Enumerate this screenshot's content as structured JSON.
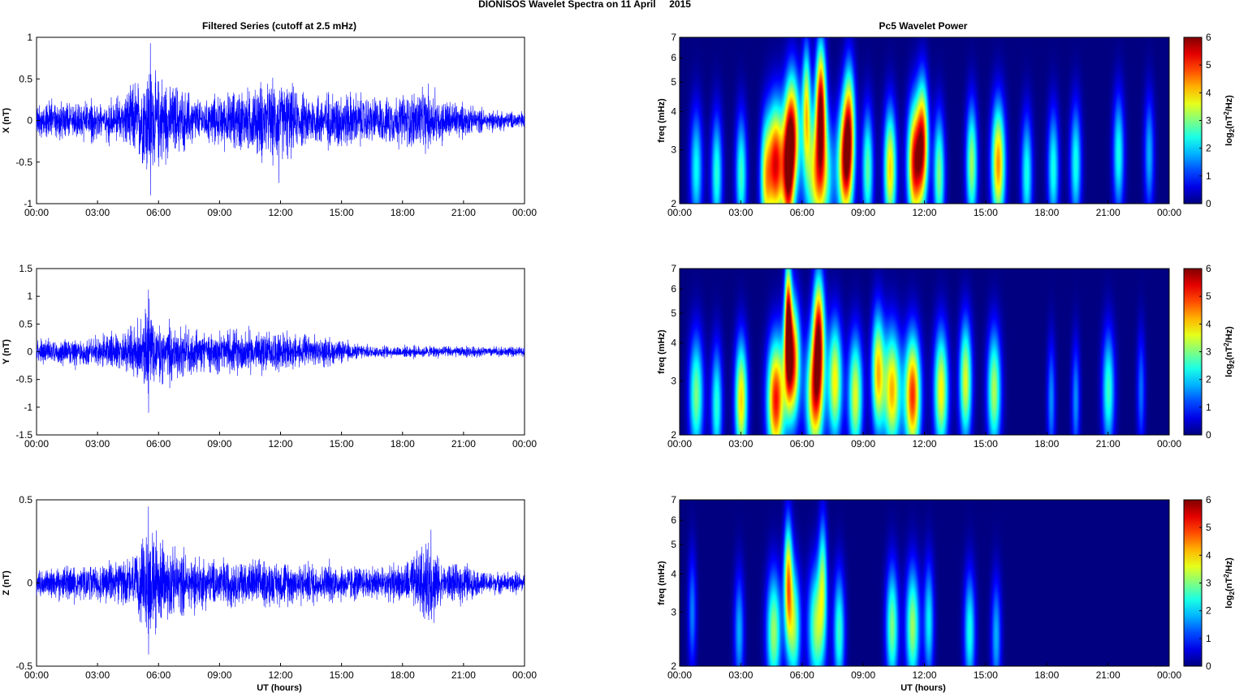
{
  "figure": {
    "title": "DIONISOS Wavelet Spectra on 11 April     2015",
    "left_title": "Filtered Series (cutoff at 2.5 mHz)",
    "right_title": "Pc5 Wavelet Power",
    "xlabel": "UT (hours)"
  },
  "colors": {
    "trace": "#0000ff",
    "axis": "#000000",
    "frame": "#000000"
  },
  "chart_data": [
    {
      "type": "line",
      "title": "Filtered Series (cutoff at 2.5 mHz)",
      "ylabel": "X (nT)",
      "xlabel": "",
      "xlim": [
        0,
        24
      ],
      "ylim": [
        -1,
        1
      ],
      "yticks": [
        "1",
        "0.5",
        "0",
        "-0.5",
        "-1"
      ],
      "ytick_values": [
        1,
        0.5,
        0,
        -0.5,
        -1
      ],
      "xticks": [
        "00:00",
        "03:00",
        "06:00",
        "09:00",
        "12:00",
        "15:00",
        "18:00",
        "21:00",
        "00:00"
      ],
      "envelope_hours": [
        0,
        2,
        4,
        5,
        5.5,
        6,
        7,
        8,
        10,
        11,
        12,
        13,
        15,
        17,
        19,
        20,
        22,
        24
      ],
      "envelope_nT": [
        0.25,
        0.25,
        0.3,
        0.55,
        0.85,
        0.6,
        0.45,
        0.3,
        0.4,
        0.5,
        0.55,
        0.35,
        0.4,
        0.3,
        0.45,
        0.3,
        0.15,
        0.12
      ],
      "peaks": [
        {
          "t": 5.6,
          "v": 0.93
        },
        {
          "t": 5.6,
          "v": -0.9
        },
        {
          "t": 11.9,
          "v": -0.75
        },
        {
          "t": 19.6,
          "v": 0.4
        }
      ]
    },
    {
      "type": "line",
      "ylabel": "Y (nT)",
      "xlabel": "",
      "xlim": [
        0,
        24
      ],
      "ylim": [
        -1.5,
        1.5
      ],
      "yticks": [
        "1.5",
        "1",
        "0.5",
        "0",
        "-0.5",
        "-1",
        "-1.5"
      ],
      "ytick_values": [
        1.5,
        1,
        0.5,
        0,
        -0.5,
        -1,
        -1.5
      ],
      "xticks": [
        "00:00",
        "03:00",
        "06:00",
        "09:00",
        "12:00",
        "15:00",
        "18:00",
        "21:00",
        "00:00"
      ],
      "envelope_hours": [
        0,
        2,
        4,
        5,
        5.5,
        6,
        7,
        8,
        10,
        12,
        14,
        16,
        18,
        20,
        24
      ],
      "envelope_nT": [
        0.25,
        0.3,
        0.35,
        0.6,
        1.0,
        0.7,
        0.55,
        0.4,
        0.45,
        0.4,
        0.3,
        0.15,
        0.12,
        0.12,
        0.1
      ],
      "peaks": [
        {
          "t": 5.5,
          "v": 1.12
        },
        {
          "t": 5.5,
          "v": -1.1
        }
      ]
    },
    {
      "type": "line",
      "ylabel": "Z (nT)",
      "xlabel": "UT (hours)",
      "xlim": [
        0,
        24
      ],
      "ylim": [
        -0.5,
        0.5
      ],
      "yticks": [
        "0.5",
        "0",
        "-0.5"
      ],
      "ytick_values": [
        0.5,
        0,
        -0.5
      ],
      "xticks": [
        "00:00",
        "03:00",
        "06:00",
        "09:00",
        "12:00",
        "15:00",
        "18:00",
        "21:00",
        "00:00"
      ],
      "envelope_hours": [
        0,
        2,
        4,
        5,
        5.5,
        6,
        7,
        8,
        10,
        12,
        14,
        16,
        18,
        19.4,
        20,
        21,
        22,
        24
      ],
      "envelope_nT": [
        0.1,
        0.12,
        0.15,
        0.22,
        0.42,
        0.3,
        0.22,
        0.18,
        0.16,
        0.15,
        0.14,
        0.12,
        0.12,
        0.3,
        0.12,
        0.14,
        0.08,
        0.07
      ],
      "peaks": [
        {
          "t": 5.5,
          "v": 0.46
        },
        {
          "t": 5.5,
          "v": -0.43
        },
        {
          "t": 19.4,
          "v": 0.32
        }
      ]
    },
    {
      "type": "heatmap",
      "title": "Pc5 Wavelet Power",
      "ylabel": "freq (mHz)",
      "xlabel": "",
      "xlim": [
        0,
        24
      ],
      "ylim": [
        2,
        7
      ],
      "yscale": "log",
      "yticks": [
        "7",
        "6",
        "5",
        "4",
        "3",
        "2"
      ],
      "ytick_values": [
        7,
        6,
        5,
        4,
        3,
        2
      ],
      "xticks": [
        "00:00",
        "03:00",
        "06:00",
        "09:00",
        "12:00",
        "15:00",
        "18:00",
        "21:00",
        "00:00"
      ],
      "colorbar_label": "log2(nT2/Hz)",
      "colorbar_ticks": [
        "6",
        "5",
        "4",
        "3",
        "2",
        "1",
        "0"
      ],
      "clim": [
        0,
        6
      ],
      "blobs": [
        {
          "t": 0.8,
          "f": 2.6,
          "amp": 2.3,
          "w": 0.22
        },
        {
          "t": 1.8,
          "f": 2.5,
          "amp": 2.5,
          "w": 0.2
        },
        {
          "t": 3.0,
          "f": 2.5,
          "amp": 2.6,
          "w": 0.2
        },
        {
          "t": 4.2,
          "f": 2.4,
          "amp": 3.2,
          "w": 0.2
        },
        {
          "t": 4.7,
          "f": 2.7,
          "amp": 5.3,
          "w": 0.28
        },
        {
          "t": 5.5,
          "f": 3.4,
          "amp": 5.0,
          "w": 0.26
        },
        {
          "t": 5.3,
          "f": 2.4,
          "amp": 4.2,
          "w": 0.2
        },
        {
          "t": 6.2,
          "f": 4.2,
          "amp": 3.5,
          "w": 0.15
        },
        {
          "t": 6.9,
          "f": 4.3,
          "amp": 5.2,
          "w": 0.18
        },
        {
          "t": 6.8,
          "f": 2.5,
          "amp": 4.3,
          "w": 0.45
        },
        {
          "t": 8.1,
          "f": 2.7,
          "amp": 5.0,
          "w": 0.26
        },
        {
          "t": 8.3,
          "f": 3.7,
          "amp": 3.5,
          "w": 0.2
        },
        {
          "t": 9.2,
          "f": 2.6,
          "amp": 2.8,
          "w": 0.2
        },
        {
          "t": 10.3,
          "f": 2.6,
          "amp": 4.0,
          "w": 0.22
        },
        {
          "t": 11.5,
          "f": 2.7,
          "amp": 5.2,
          "w": 0.25
        },
        {
          "t": 11.9,
          "f": 3.2,
          "amp": 4.6,
          "w": 0.2
        },
        {
          "t": 12.7,
          "f": 2.5,
          "amp": 3.0,
          "w": 0.2
        },
        {
          "t": 14.3,
          "f": 2.7,
          "amp": 3.2,
          "w": 0.2
        },
        {
          "t": 15.6,
          "f": 2.7,
          "amp": 4.4,
          "w": 0.24
        },
        {
          "t": 17.0,
          "f": 2.5,
          "amp": 2.4,
          "w": 0.2
        },
        {
          "t": 18.3,
          "f": 2.6,
          "amp": 2.4,
          "w": 0.2
        },
        {
          "t": 19.4,
          "f": 2.7,
          "amp": 2.4,
          "w": 0.2
        },
        {
          "t": 21.5,
          "f": 2.9,
          "amp": 2.4,
          "w": 0.2
        },
        {
          "t": 23.0,
          "f": 2.9,
          "amp": 1.8,
          "w": 0.18
        }
      ]
    },
    {
      "type": "heatmap",
      "ylabel": "freq (mHz)",
      "xlabel": "",
      "xlim": [
        0,
        24
      ],
      "ylim": [
        2,
        7
      ],
      "yscale": "log",
      "yticks": [
        "7",
        "6",
        "5",
        "4",
        "3",
        "2"
      ],
      "ytick_values": [
        7,
        6,
        5,
        4,
        3,
        2
      ],
      "xticks": [
        "00:00",
        "03:00",
        "06:00",
        "09:00",
        "12:00",
        "15:00",
        "18:00",
        "21:00",
        "00:00"
      ],
      "colorbar_label": "log2(nT2/Hz)",
      "colorbar_ticks": [
        "6",
        "5",
        "4",
        "3",
        "2",
        "1",
        "0"
      ],
      "clim": [
        0,
        6
      ],
      "blobs": [
        {
          "t": 0.8,
          "f": 2.7,
          "amp": 3.0,
          "w": 0.25
        },
        {
          "t": 1.8,
          "f": 2.5,
          "amp": 2.5,
          "w": 0.2
        },
        {
          "t": 3.0,
          "f": 2.6,
          "amp": 4.0,
          "w": 0.22
        },
        {
          "t": 4.7,
          "f": 2.6,
          "amp": 5.2,
          "w": 0.3
        },
        {
          "t": 5.5,
          "f": 3.5,
          "amp": 5.4,
          "w": 0.26
        },
        {
          "t": 5.3,
          "f": 4.8,
          "amp": 4.5,
          "w": 0.12
        },
        {
          "t": 6.8,
          "f": 4.3,
          "amp": 5.0,
          "w": 0.2
        },
        {
          "t": 6.6,
          "f": 2.7,
          "amp": 4.6,
          "w": 0.3
        },
        {
          "t": 7.6,
          "f": 3.0,
          "amp": 3.8,
          "w": 0.25
        },
        {
          "t": 8.6,
          "f": 2.7,
          "amp": 3.6,
          "w": 0.25
        },
        {
          "t": 9.7,
          "f": 3.2,
          "amp": 4.0,
          "w": 0.22
        },
        {
          "t": 10.4,
          "f": 2.8,
          "amp": 4.2,
          "w": 0.3
        },
        {
          "t": 11.4,
          "f": 2.7,
          "amp": 5.0,
          "w": 0.28
        },
        {
          "t": 12.8,
          "f": 2.8,
          "amp": 3.8,
          "w": 0.25
        },
        {
          "t": 14.0,
          "f": 3.0,
          "amp": 3.6,
          "w": 0.22
        },
        {
          "t": 15.4,
          "f": 2.8,
          "amp": 3.3,
          "w": 0.24
        },
        {
          "t": 18.2,
          "f": 2.6,
          "amp": 1.6,
          "w": 0.15
        },
        {
          "t": 19.4,
          "f": 2.6,
          "amp": 1.6,
          "w": 0.15
        },
        {
          "t": 21.0,
          "f": 2.8,
          "amp": 2.6,
          "w": 0.22
        },
        {
          "t": 22.6,
          "f": 2.8,
          "amp": 1.4,
          "w": 0.15
        }
      ]
    },
    {
      "type": "heatmap",
      "ylabel": "freq (mHz)",
      "xlabel": "UT (hours)",
      "xlim": [
        0,
        24
      ],
      "ylim": [
        2,
        7
      ],
      "yscale": "log",
      "yticks": [
        "7",
        "6",
        "5",
        "4",
        "3",
        "2"
      ],
      "ytick_values": [
        7,
        6,
        5,
        4,
        3,
        2
      ],
      "xticks": [
        "00:00",
        "03:00",
        "06:00",
        "09:00",
        "12:00",
        "15:00",
        "18:00",
        "21:00",
        "00:00"
      ],
      "colorbar_label": "log2(nT2/Hz)",
      "colorbar_ticks": [
        "6",
        "5",
        "4",
        "3",
        "2",
        "1",
        "0"
      ],
      "clim": [
        0,
        6
      ],
      "blobs": [
        {
          "t": 0.6,
          "f": 3.0,
          "amp": 1.5,
          "w": 0.15
        },
        {
          "t": 2.9,
          "f": 2.6,
          "amp": 1.8,
          "w": 0.18
        },
        {
          "t": 4.6,
          "f": 2.6,
          "amp": 3.2,
          "w": 0.26
        },
        {
          "t": 5.3,
          "f": 3.8,
          "amp": 4.0,
          "w": 0.15
        },
        {
          "t": 5.6,
          "f": 2.7,
          "amp": 3.0,
          "w": 0.22
        },
        {
          "t": 6.7,
          "f": 2.7,
          "amp": 3.2,
          "w": 0.3
        },
        {
          "t": 7.0,
          "f": 4.0,
          "amp": 2.4,
          "w": 0.15
        },
        {
          "t": 7.8,
          "f": 2.6,
          "amp": 2.6,
          "w": 0.2
        },
        {
          "t": 10.4,
          "f": 2.7,
          "amp": 3.0,
          "w": 0.22
        },
        {
          "t": 11.4,
          "f": 2.7,
          "amp": 3.2,
          "w": 0.24
        },
        {
          "t": 12.2,
          "f": 2.8,
          "amp": 2.2,
          "w": 0.18
        },
        {
          "t": 14.2,
          "f": 2.6,
          "amp": 2.4,
          "w": 0.2
        },
        {
          "t": 15.5,
          "f": 2.5,
          "amp": 1.8,
          "w": 0.18
        }
      ]
    }
  ]
}
